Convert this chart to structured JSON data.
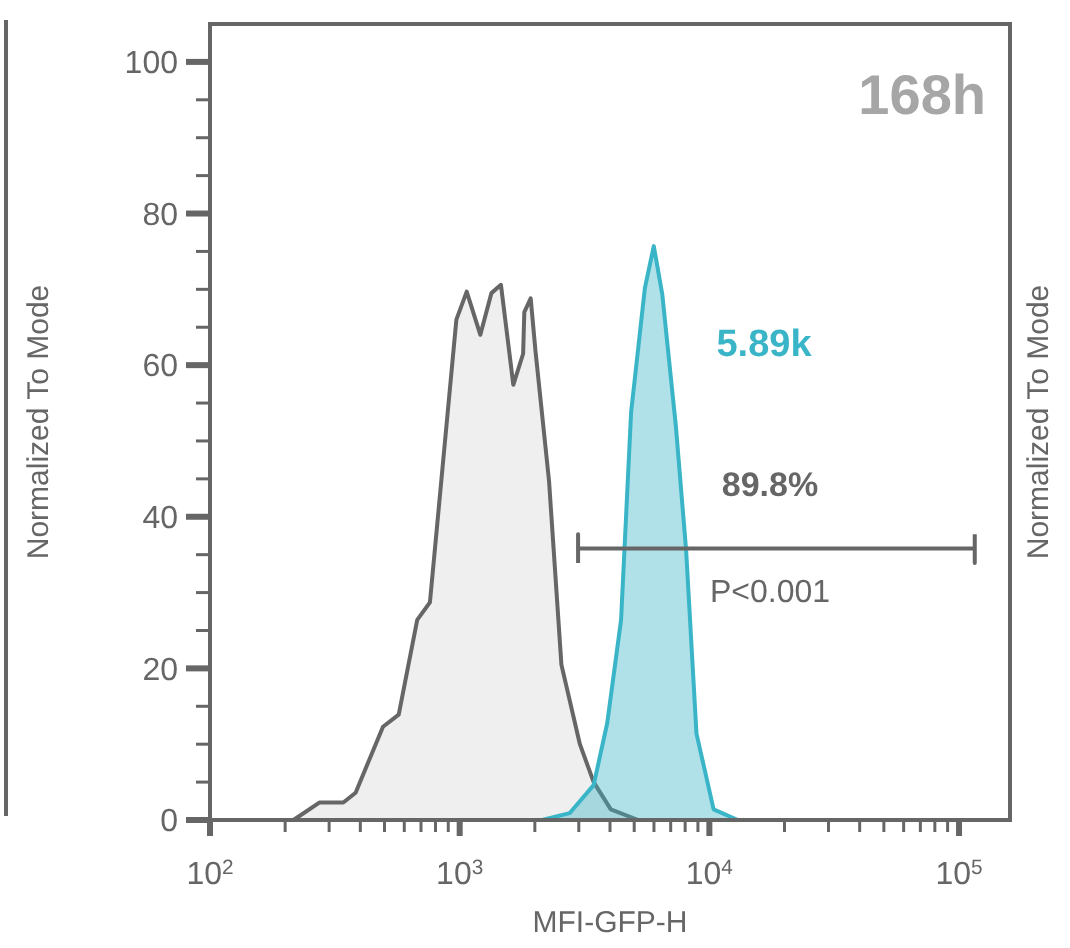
{
  "chart_data": {
    "type": "area",
    "title": "168h",
    "xlabel": "MFI-GFP-H",
    "ylabel": "Normalized To Mode",
    "y2label": "Normalized To Mode",
    "log": "x",
    "xlim": [
      100,
      160000
    ],
    "ylim": [
      0,
      105
    ],
    "xticks": [
      {
        "value": 100,
        "label": "10$^{2}$"
      },
      {
        "value": 200,
        "label": null
      },
      {
        "value": 300,
        "label": null
      },
      {
        "value": 400,
        "label": null
      },
      {
        "value": 500,
        "label": null
      },
      {
        "value": 600,
        "label": null
      },
      {
        "value": 700,
        "label": null
      },
      {
        "value": 800,
        "label": null
      },
      {
        "value": 900,
        "label": null
      },
      {
        "value": 1000,
        "label": "10$^{3}$"
      },
      {
        "value": 2000,
        "label": null
      },
      {
        "value": 3000,
        "label": null
      },
      {
        "value": 4000,
        "label": null
      },
      {
        "value": 5000,
        "label": null
      },
      {
        "value": 6000,
        "label": null
      },
      {
        "value": 7000,
        "label": null
      },
      {
        "value": 8000,
        "label": null
      },
      {
        "value": 9000,
        "label": null
      },
      {
        "value": 10000,
        "label": "10$^{4}$"
      },
      {
        "value": 20000,
        "label": null
      },
      {
        "value": 30000,
        "label": null
      },
      {
        "value": 40000,
        "label": null
      },
      {
        "value": 50000,
        "label": null
      },
      {
        "value": 60000,
        "label": null
      },
      {
        "value": 70000,
        "label": null
      },
      {
        "value": 80000,
        "label": null
      },
      {
        "value": 90000,
        "label": null
      },
      {
        "value": 100000,
        "label": "10$^{5}$"
      }
    ],
    "yticks": [
      0,
      {
        "value": 5,
        "label": null
      },
      {
        "value": 10,
        "label": null
      },
      {
        "value": 15,
        "label": null
      },
      20,
      {
        "value": 25,
        "label": null
      },
      {
        "value": 30,
        "label": null
      },
      {
        "value": 35,
        "label": null
      },
      40,
      {
        "value": 45,
        "label": null
      },
      {
        "value": 50,
        "label": null
      },
      {
        "value": 55,
        "label": null
      },
      60,
      {
        "value": 65,
        "label": null
      },
      {
        "value": 70,
        "label": null
      },
      {
        "value": 75,
        "label": null
      },
      80,
      {
        "value": 85,
        "label": null
      },
      {
        "value": 90,
        "label": null
      },
      {
        "value": 95,
        "label": null
      },
      100
    ],
    "grid": false,
    "series": [
      {
        "color": "#666666",
        "x": [
          216,
          274,
          342,
          383,
          493,
          570,
          676,
          760,
          970,
          1067,
          1210,
          1340,
          1463,
          1640,
          1795,
          1815,
          1925,
          2010,
          2280,
          2555,
          3030,
          3440,
          4030,
          5190
        ],
        "values": [
          0,
          2.3,
          2.3,
          3.6,
          12.3,
          13.9,
          26.4,
          28.7,
          66,
          69.7,
          64,
          69.5,
          70.6,
          57.4,
          61.5,
          67,
          68.8,
          62,
          44.7,
          20.5,
          10,
          5,
          1.4,
          0
        ]
      },
      {
        "color": "#3ab5c8",
        "x": [
          2140,
          2755,
          3440,
          3900,
          4430,
          4860,
          5520,
          5990,
          6480,
          7340,
          8070,
          8880,
          10400,
          13000
        ],
        "values": [
          0,
          0.9,
          4.6,
          12.8,
          26.4,
          53.8,
          70.2,
          75.7,
          69.3,
          52,
          35.6,
          11.4,
          1.4,
          0
        ]
      },
      {
        "type": "line",
        "color": "#666666",
        "x": [
          2980,
          2980,
          2980,
          115600,
          115600,
          115600
        ],
        "values": [
          33.9,
          37.7,
          35.8,
          35.8,
          33.9,
          37.7
        ]
      }
    ],
    "annotations": [
      "5.89k",
      "89.8%",
      "P<0.001"
    ]
  }
}
